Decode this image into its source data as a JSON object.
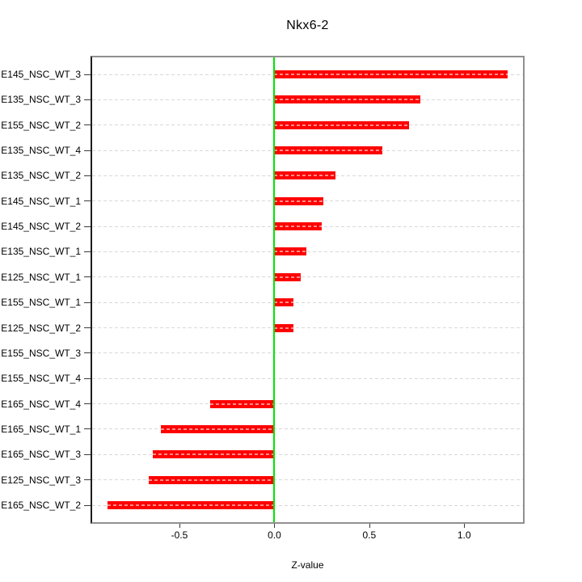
{
  "title": "Nkx6-2",
  "x_axis": {
    "label": "Z-value"
  },
  "chart_data": {
    "type": "bar",
    "orientation": "horizontal",
    "title": "Nkx6-2",
    "xlabel": "Z-value",
    "ylabel": "",
    "categories": [
      "E145_NSC_WT_3",
      "E135_NSC_WT_3",
      "E155_NSC_WT_2",
      "E135_NSC_WT_4",
      "E135_NSC_WT_2",
      "E145_NSC_WT_1",
      "E145_NSC_WT_2",
      "E135_NSC_WT_1",
      "E125_NSC_WT_1",
      "E155_NSC_WT_1",
      "E125_NSC_WT_2",
      "E155_NSC_WT_3",
      "E155_NSC_WT_4",
      "E165_NSC_WT_4",
      "E165_NSC_WT_1",
      "E165_NSC_WT_3",
      "E125_NSC_WT_3",
      "E165_NSC_WT_2"
    ],
    "values": [
      1.23,
      0.77,
      0.71,
      0.57,
      0.32,
      0.26,
      0.25,
      0.17,
      0.14,
      0.1,
      0.1,
      0.0,
      0.0,
      -0.34,
      -0.6,
      -0.64,
      -0.66,
      -0.88
    ],
    "xlim": [
      -0.96,
      1.31
    ],
    "x_ticks": [
      -0.5,
      0.0,
      0.5,
      1.0
    ],
    "x_tick_labels": [
      "-0.5",
      "0.0",
      "0.5",
      "1.0"
    ],
    "grid": true,
    "zero_reference_line": 0,
    "legend": "none",
    "colors": {
      "bar": "#ff0000",
      "bar_inner_dash": "rgba(255,255,255,0.55)",
      "zero_line": "#00e400",
      "grid": "#d8d8d8",
      "box": "#909090",
      "y_axis_line": "#1c1c1c",
      "tick": "#3a3a3a",
      "text": "#000000",
      "background": "#ffffff"
    }
  }
}
